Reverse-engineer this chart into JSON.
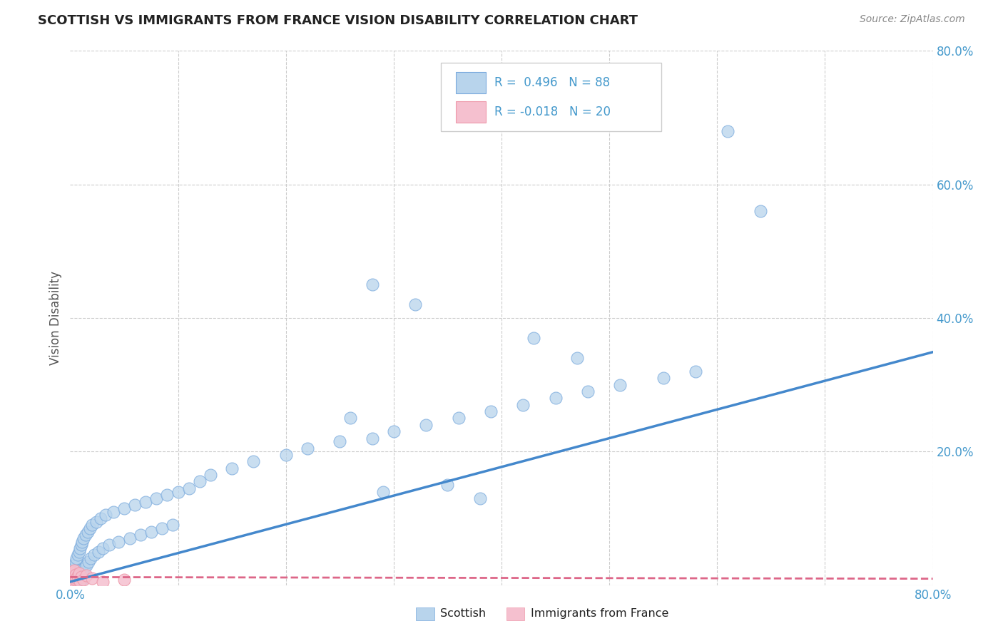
{
  "title": "SCOTTISH VS IMMIGRANTS FROM FRANCE VISION DISABILITY CORRELATION CHART",
  "source": "Source: ZipAtlas.com",
  "ylabel": "Vision Disability",
  "xlim": [
    0.0,
    0.8
  ],
  "ylim": [
    0.0,
    0.8
  ],
  "grid_yticks": [
    0.2,
    0.4,
    0.6,
    0.8
  ],
  "grid_xticks": [
    0.1,
    0.2,
    0.3,
    0.4,
    0.5,
    0.6,
    0.7,
    0.8
  ],
  "background_color": "#ffffff",
  "grid_color": "#cccccc",
  "scottish_fill": "#b8d4ec",
  "scottish_edge": "#7aaadd",
  "france_fill": "#f5c0cf",
  "france_edge": "#ee99aa",
  "reg_scottish_color": "#4488cc",
  "reg_france_color": "#dd6688",
  "legend_R_scottish": "0.496",
  "legend_N_scottish": "88",
  "legend_R_france": "-0.018",
  "legend_N_france": "20",
  "title_color": "#222222",
  "source_color": "#888888",
  "axis_label_color": "#555555",
  "tick_color": "#4499cc",
  "scottish_x": [
    0.001,
    0.001,
    0.002,
    0.002,
    0.002,
    0.003,
    0.003,
    0.003,
    0.003,
    0.004,
    0.004,
    0.004,
    0.005,
    0.005,
    0.005,
    0.006,
    0.006,
    0.006,
    0.007,
    0.007,
    0.007,
    0.008,
    0.008,
    0.009,
    0.009,
    0.01,
    0.01,
    0.011,
    0.011,
    0.012,
    0.012,
    0.013,
    0.014,
    0.015,
    0.016,
    0.017,
    0.018,
    0.019,
    0.02,
    0.022,
    0.024,
    0.026,
    0.028,
    0.03,
    0.033,
    0.036,
    0.04,
    0.045,
    0.05,
    0.055,
    0.06,
    0.065,
    0.07,
    0.075,
    0.08,
    0.085,
    0.09,
    0.095,
    0.1,
    0.11,
    0.12,
    0.13,
    0.15,
    0.17,
    0.2,
    0.22,
    0.25,
    0.28,
    0.3,
    0.33,
    0.36,
    0.39,
    0.42,
    0.45,
    0.48,
    0.51,
    0.55,
    0.58,
    0.61,
    0.64,
    0.28,
    0.32,
    0.43,
    0.47,
    0.35,
    0.38,
    0.26,
    0.29
  ],
  "scottish_y": [
    0.005,
    0.012,
    0.008,
    0.018,
    0.003,
    0.01,
    0.02,
    0.006,
    0.015,
    0.025,
    0.004,
    0.03,
    0.008,
    0.035,
    0.002,
    0.012,
    0.04,
    0.006,
    0.018,
    0.045,
    0.003,
    0.022,
    0.05,
    0.015,
    0.055,
    0.008,
    0.06,
    0.02,
    0.065,
    0.01,
    0.07,
    0.025,
    0.075,
    0.03,
    0.08,
    0.035,
    0.085,
    0.04,
    0.09,
    0.045,
    0.095,
    0.05,
    0.1,
    0.055,
    0.105,
    0.06,
    0.11,
    0.065,
    0.115,
    0.07,
    0.12,
    0.075,
    0.125,
    0.08,
    0.13,
    0.085,
    0.135,
    0.09,
    0.14,
    0.145,
    0.155,
    0.165,
    0.175,
    0.185,
    0.195,
    0.205,
    0.215,
    0.22,
    0.23,
    0.24,
    0.25,
    0.26,
    0.27,
    0.28,
    0.29,
    0.3,
    0.31,
    0.32,
    0.68,
    0.56,
    0.45,
    0.42,
    0.37,
    0.34,
    0.15,
    0.13,
    0.25,
    0.14
  ],
  "france_x": [
    0.001,
    0.001,
    0.002,
    0.002,
    0.003,
    0.003,
    0.004,
    0.004,
    0.005,
    0.005,
    0.006,
    0.007,
    0.008,
    0.009,
    0.01,
    0.012,
    0.015,
    0.02,
    0.03,
    0.05
  ],
  "france_y": [
    0.008,
    0.015,
    0.01,
    0.02,
    0.005,
    0.018,
    0.012,
    0.022,
    0.008,
    0.016,
    0.01,
    0.014,
    0.018,
    0.006,
    0.012,
    0.008,
    0.015,
    0.01,
    0.005,
    0.008
  ]
}
